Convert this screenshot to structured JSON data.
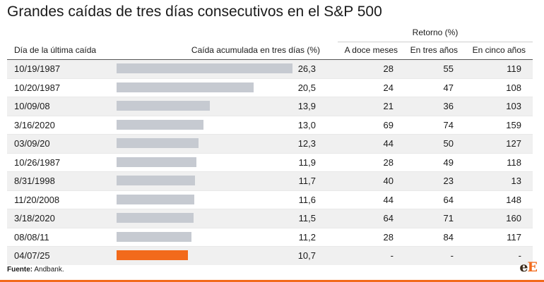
{
  "title": "Grandes caídas de tres días consecutivos en el S&P 500",
  "group_header": "Retorno (%)",
  "columns": {
    "date": "Día de la última caída",
    "drop": "Caída acumulada en tres días (%)",
    "ret_12m": "A doce meses",
    "ret_3y": "En tres años",
    "ret_5y": "En cinco años"
  },
  "colors": {
    "bar": "#c6cad1",
    "highlight": "#f26a1b"
  },
  "chart_data": {
    "type": "table",
    "bar_column": "drop",
    "bar_max": 26.3,
    "rows": [
      {
        "date": "10/19/1987",
        "drop": "26,3",
        "drop_value": 26.3,
        "ret_12m": "28",
        "ret_3y": "55",
        "ret_5y": "119",
        "highlight": false
      },
      {
        "date": "10/20/1987",
        "drop": "20,5",
        "drop_value": 20.5,
        "ret_12m": "24",
        "ret_3y": "47",
        "ret_5y": "108",
        "highlight": false
      },
      {
        "date": "10/09/08",
        "drop": "13,9",
        "drop_value": 13.9,
        "ret_12m": "21",
        "ret_3y": "36",
        "ret_5y": "103",
        "highlight": false
      },
      {
        "date": "3/16/2020",
        "drop": "13,0",
        "drop_value": 13.0,
        "ret_12m": "69",
        "ret_3y": "74",
        "ret_5y": "159",
        "highlight": false
      },
      {
        "date": "03/09/20",
        "drop": "12,3",
        "drop_value": 12.3,
        "ret_12m": "44",
        "ret_3y": "50",
        "ret_5y": "127",
        "highlight": false
      },
      {
        "date": "10/26/1987",
        "drop": "11,9",
        "drop_value": 11.9,
        "ret_12m": "28",
        "ret_3y": "49",
        "ret_5y": "118",
        "highlight": false
      },
      {
        "date": "8/31/1998",
        "drop": "11,7",
        "drop_value": 11.7,
        "ret_12m": "40",
        "ret_3y": "23",
        "ret_5y": "13",
        "highlight": false
      },
      {
        "date": "11/20/2008",
        "drop": "11,6",
        "drop_value": 11.6,
        "ret_12m": "44",
        "ret_3y": "64",
        "ret_5y": "148",
        "highlight": false
      },
      {
        "date": "3/18/2020",
        "drop": "11,5",
        "drop_value": 11.5,
        "ret_12m": "64",
        "ret_3y": "71",
        "ret_5y": "160",
        "highlight": false
      },
      {
        "date": "08/08/11",
        "drop": "11,2",
        "drop_value": 11.2,
        "ret_12m": "28",
        "ret_3y": "84",
        "ret_5y": "117",
        "highlight": false
      },
      {
        "date": "04/07/25",
        "drop": "10,7",
        "drop_value": 10.7,
        "ret_12m": "-",
        "ret_3y": "-",
        "ret_5y": "-",
        "highlight": true
      }
    ]
  },
  "source": {
    "label": "Fuente:",
    "text": " Andbank."
  },
  "logo": {
    "part1": "e",
    "part2": "E"
  }
}
